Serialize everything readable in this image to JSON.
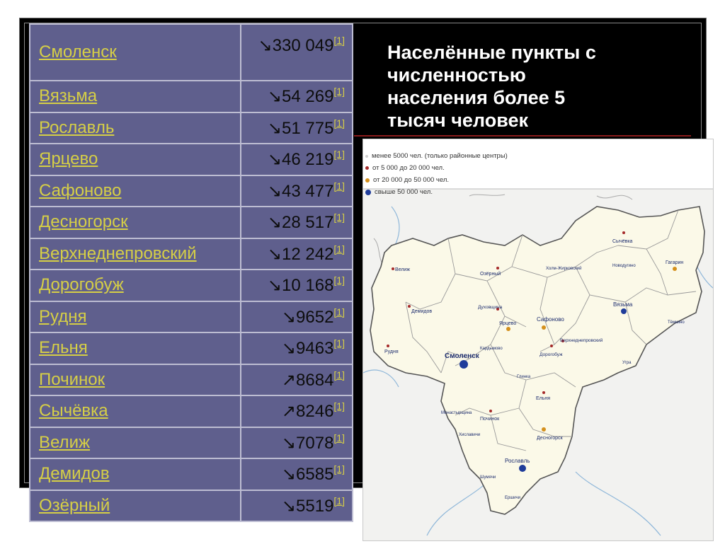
{
  "title": "Населённые пункты с численностью населения более 5 тысяч человек",
  "title_lines": [
    "Населённые пункты с",
    "численностью",
    "населения более 5",
    "тысяч человек"
  ],
  "footnote": "[1]",
  "cities": [
    {
      "name": "Смоленск",
      "arrow": "↘",
      "population": "330 049"
    },
    {
      "name": "Вязьма",
      "arrow": "↘",
      "population": "54 269"
    },
    {
      "name": "Рославль",
      "arrow": "↘",
      "population": "51 775"
    },
    {
      "name": "Ярцево",
      "arrow": "↘",
      "population": "46 219"
    },
    {
      "name": "Сафоново",
      "arrow": "↘",
      "population": "43 477"
    },
    {
      "name": "Десногорск",
      "arrow": "↘",
      "population": "28 517"
    },
    {
      "name": "Верхнеднепровский",
      "arrow": "↘",
      "population": "12 242"
    },
    {
      "name": "Дорогобуж",
      "arrow": "↘",
      "population": "10 168"
    },
    {
      "name": "Рудня",
      "arrow": "↘",
      "population": "9652"
    },
    {
      "name": "Ельня",
      "arrow": "↘",
      "population": "9463"
    },
    {
      "name": "Починок",
      "arrow": "↗",
      "population": "8684"
    },
    {
      "name": "Сычёвка",
      "arrow": "↗",
      "population": "8246"
    },
    {
      "name": "Велиж",
      "arrow": "↘",
      "population": "7078"
    },
    {
      "name": "Демидов",
      "arrow": "↘",
      "population": "6585"
    },
    {
      "name": "Озёрный",
      "arrow": "↘",
      "population": "5519"
    }
  ],
  "map": {
    "legend": [
      {
        "label": "менее 5000 чел. (только районные центры)",
        "color": "#e8e8e8"
      },
      {
        "label": "от 5 000 до 20 000 чел.",
        "color": "#a52a2a"
      },
      {
        "label": "от 20 000 до 50 000 чел.",
        "color": "#d4901c"
      },
      {
        "label": "свыше 50 000 чел.",
        "color": "#1f3c9a"
      }
    ],
    "labels": {
      "smolensk": "Смоленск",
      "vyazma": "Вязьма",
      "roslavl": "Рославль",
      "yartsevo": "Ярцево",
      "safonovo": "Сафоново",
      "gagarin": "Гагарин",
      "desnogorsk": "Десногорск",
      "verkhnedneprovsky": "Верхнеднепровский",
      "dorogobuzh": "Дорогобуж",
      "rudnya": "Рудня",
      "yelnya": "Ельня",
      "pochinok": "Починок",
      "sychyovka": "Сычёвка",
      "velizh": "Велиж",
      "demidov": "Демидов",
      "ozyorny": "Озёрный",
      "dukhovshchina": "Духовщина",
      "kardymovo": "Кардымово",
      "kholm": "Холм-Жирковский",
      "novoduginо": "Новодугино",
      "temkino": "Тёмкино",
      "ugra": "Угра",
      "glinka": "Глинка",
      "monastyrshchina": "Монастырщина",
      "khislavichi": "Хиславичи",
      "shumyachi": "Шумячи",
      "yershichi": "Ершичи"
    }
  }
}
